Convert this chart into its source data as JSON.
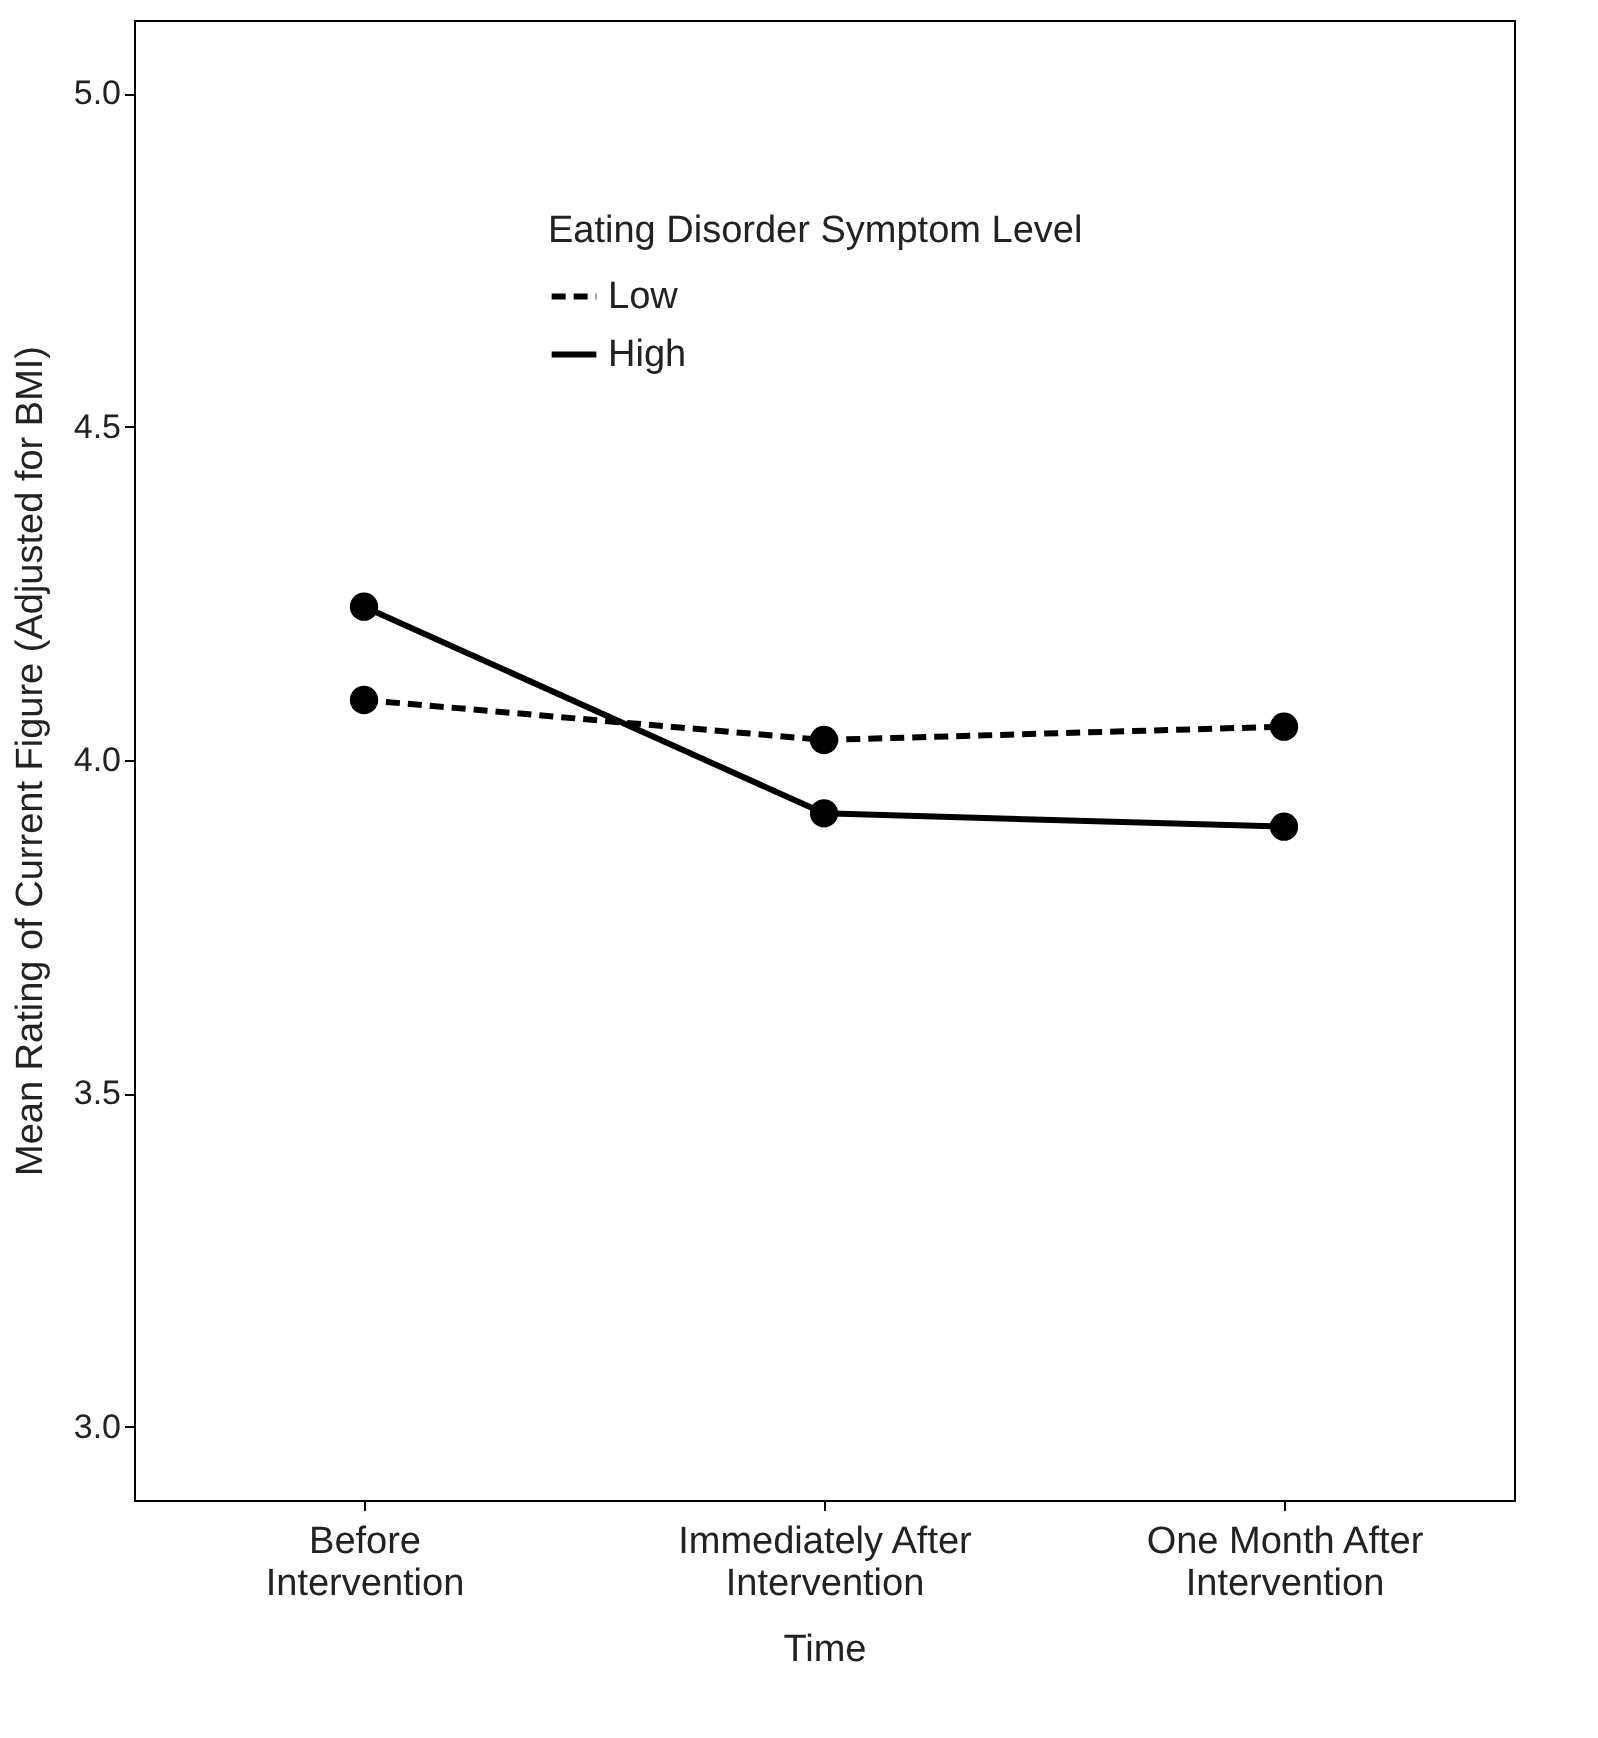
{
  "chart_data": {
    "type": "line",
    "xlabel": "Time",
    "ylabel": "Mean Rating of Current Figure (Adjusted for BMI)",
    "legend_title": "Eating Disorder Symptom Level",
    "categories": [
      "Before Intervention",
      "Immediately After Intervention",
      "One Month After Intervention"
    ],
    "series": [
      {
        "name": "Low",
        "color": "#000000",
        "line_style": "dashed",
        "values": [
          4.09,
          4.03,
          4.05
        ]
      },
      {
        "name": "High",
        "color": "#000000",
        "line_style": "solid",
        "values": [
          4.23,
          3.92,
          3.9
        ]
      }
    ],
    "ylim": [
      2.89,
      5.11
    ],
    "yticks": [
      {
        "value": 3,
        "label": "3.0"
      },
      {
        "value": 3.5,
        "label": "3.5"
      },
      {
        "value": 4,
        "label": "4.0"
      },
      {
        "value": 4.5,
        "label": "4.5"
      },
      {
        "value": 5,
        "label": "5.0"
      }
    ],
    "grid": false,
    "legend": "top",
    "marker": "circle"
  }
}
